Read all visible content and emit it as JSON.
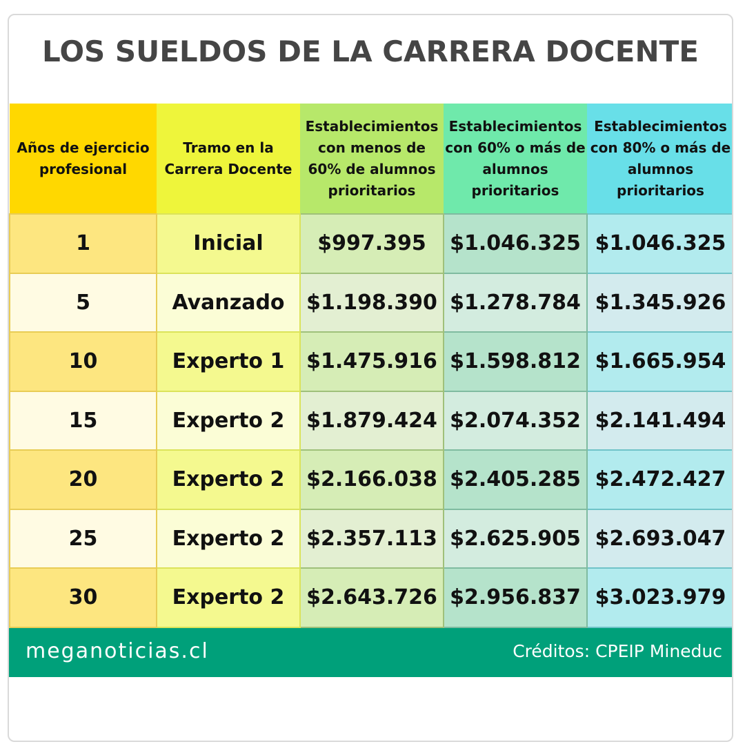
{
  "title": "LOS SUELDOS DE LA CARRERA DOCENTE",
  "chart_data": {
    "type": "table",
    "title": "LOS SUELDOS DE LA CARRERA DOCENTE",
    "columns": [
      "Años de ejercicio profesional",
      "Tramo en la Carrera Docente",
      "Establecimientos con menos de 60% de alumnos prioritarios",
      "Establecimientos con 60% o más de alumnos prioritarios",
      "Establecimientos con 80% o más de alumnos prioritarios"
    ],
    "rows": [
      [
        "1",
        "Inicial",
        "$997.395",
        "$1.046.325",
        "$1.046.325"
      ],
      [
        "5",
        "Avanzado",
        "$1.198.390",
        "$1.278.784",
        "$1.345.926"
      ],
      [
        "10",
        "Experto 1",
        "$1.475.916",
        "$1.598.812",
        "$1.665.954"
      ],
      [
        "15",
        "Experto 2",
        "$1.879.424",
        "$2.074.352",
        "$2.141.494"
      ],
      [
        "20",
        "Experto 2",
        "$2.166.038",
        "$2.405.285",
        "$2.472.427"
      ],
      [
        "25",
        "Experto 2",
        "$2.357.113",
        "$2.625.905",
        "$2.693.047"
      ],
      [
        "30",
        "Experto 2",
        "$2.643.726",
        "$2.956.837",
        "$3.023.979"
      ]
    ]
  },
  "footer": {
    "brand": "meganoticias.cl",
    "credits": "Créditos: CPEIP Mineduc"
  }
}
